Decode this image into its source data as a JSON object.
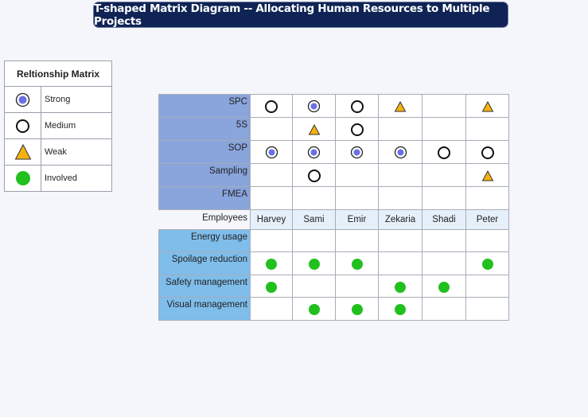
{
  "title": "T-shaped Matrix Diagram -- Allocating Human Resources to Multiple Projects",
  "legend": {
    "title": "Reltionship Matrix",
    "items": [
      {
        "symbol": "strong",
        "label": "Strong"
      },
      {
        "symbol": "medium",
        "label": "Medium"
      },
      {
        "symbol": "weak",
        "label": "Weak"
      },
      {
        "symbol": "involved",
        "label": "Involved"
      }
    ]
  },
  "matrix": {
    "employees_label": "Employees",
    "employees": [
      "Harvey",
      "Sami",
      "Emir",
      "Zekaria",
      "Shadi",
      "Peter"
    ],
    "top_rows": [
      {
        "label": "SPC",
        "cells": [
          "medium",
          "strong",
          "medium",
          "weak",
          "",
          "weak"
        ]
      },
      {
        "label": "5S",
        "cells": [
          "",
          "weak",
          "medium",
          "",
          "",
          ""
        ]
      },
      {
        "label": "SOP",
        "cells": [
          "strong",
          "strong",
          "strong",
          "strong",
          "medium",
          "medium"
        ]
      },
      {
        "label": "Sampling",
        "cells": [
          "",
          "medium",
          "",
          "",
          "",
          "weak"
        ]
      },
      {
        "label": "FMEA",
        "cells": [
          "",
          "",
          "",
          "",
          "",
          ""
        ]
      }
    ],
    "bottom_rows": [
      {
        "label": "Energy usage",
        "cells": [
          "",
          "",
          "",
          "",
          "",
          ""
        ]
      },
      {
        "label": "Spoilage reduction",
        "cells": [
          "involved",
          "involved",
          "involved",
          "",
          "",
          "involved"
        ]
      },
      {
        "label": "Safety management",
        "cells": [
          "involved",
          "",
          "",
          "involved",
          "involved",
          ""
        ]
      },
      {
        "label": "Visual management",
        "cells": [
          "",
          "involved",
          "involved",
          "involved",
          "",
          ""
        ]
      }
    ]
  },
  "colors": {
    "title_bg": "#0f2354",
    "top_header": "#8aa4dc",
    "bottom_header": "#7fbdeb",
    "strong": "#6a6fe6",
    "weak": "#f5b20f",
    "involved": "#22c01e"
  }
}
